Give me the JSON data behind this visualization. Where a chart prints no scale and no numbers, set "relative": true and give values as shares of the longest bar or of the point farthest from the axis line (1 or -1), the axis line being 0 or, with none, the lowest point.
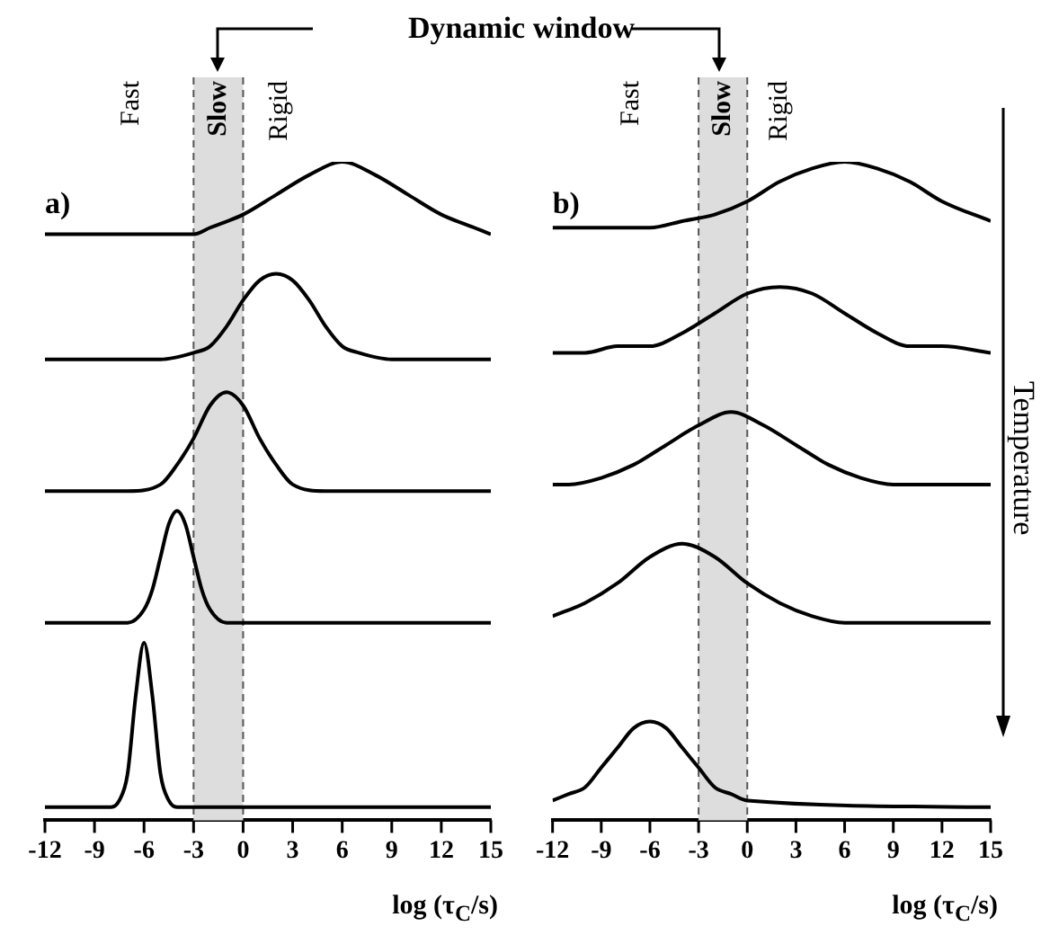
{
  "chart_data": [
    {
      "type": "line",
      "title": "a)",
      "xlabel": "log (τ$_{C}$/s)",
      "relative": true,
      "xlim": [
        -12,
        15
      ],
      "xticks": [
        -12,
        -9,
        -6,
        -3,
        0,
        3,
        6,
        9,
        12,
        15
      ],
      "legend": false,
      "bands": [
        {
          "axis": "x",
          "from": -3,
          "to": 0,
          "label": "Slow",
          "color": "#dddddd"
        }
      ],
      "annotations": [
        "Dynamic window",
        "Fast",
        "Rigid"
      ],
      "series": [
        {
          "color": "#000000",
          "x": [
            -12,
            -8,
            -7.5,
            -7,
            -6.5,
            -6,
            -5.5,
            -5,
            -4.5,
            -4,
            15
          ],
          "values": [
            0.02,
            0.02,
            0.03,
            0.07,
            0.19,
            0.27,
            0.19,
            0.07,
            0.03,
            0.02,
            0.02
          ]
        },
        {
          "color": "#000000",
          "x": [
            -12,
            -7,
            -6,
            -5.5,
            -5,
            -4.5,
            -4,
            -3.5,
            -3,
            -2.5,
            -2,
            -1,
            15
          ],
          "values": [
            0.3,
            0.3,
            0.32,
            0.35,
            0.4,
            0.45,
            0.47,
            0.45,
            0.4,
            0.35,
            0.32,
            0.3,
            0.3
          ]
        },
        {
          "color": "#000000",
          "x": [
            -12,
            -7,
            -5,
            -4,
            -3,
            -2,
            -1,
            0,
            1,
            2,
            3,
            5,
            15
          ],
          "values": [
            0.5,
            0.5,
            0.51,
            0.54,
            0.58,
            0.63,
            0.65,
            0.63,
            0.58,
            0.54,
            0.51,
            0.5,
            0.5
          ]
        },
        {
          "color": "#000000",
          "x": [
            -12,
            -5,
            -3,
            -2,
            -1,
            0,
            1,
            2,
            3,
            4,
            5,
            6,
            7,
            9,
            15
          ],
          "values": [
            0.7,
            0.7,
            0.71,
            0.72,
            0.75,
            0.79,
            0.82,
            0.83,
            0.82,
            0.79,
            0.75,
            0.72,
            0.71,
            0.7,
            0.7
          ]
        },
        {
          "color": "#000000",
          "x": [
            -12,
            -3,
            -2,
            0,
            2,
            4,
            6,
            8,
            10,
            12,
            14,
            15
          ],
          "values": [
            0.89,
            0.89,
            0.9,
            0.92,
            0.95,
            0.98,
            1,
            0.98,
            0.95,
            0.92,
            0.9,
            0.89
          ]
        }
      ]
    },
    {
      "type": "line",
      "title": "b)",
      "xlabel": "log (τ$_{C}$/s)",
      "relative": true,
      "xlim": [
        -12,
        15
      ],
      "xticks": [
        -12,
        -9,
        -6,
        -3,
        0,
        3,
        6,
        9,
        12,
        15
      ],
      "legend": false,
      "bands": [
        {
          "axis": "x",
          "from": -3,
          "to": 0,
          "label": "Slow",
          "color": "#dddddd"
        }
      ],
      "annotations": [
        "Temperature",
        "Fast",
        "Rigid"
      ],
      "series": [
        {
          "color": "#000000",
          "x": [
            -12,
            -11,
            -10,
            -9,
            -8,
            -7,
            -6,
            -5,
            -4,
            -3,
            -2,
            -1,
            0,
            15
          ],
          "values": [
            0.03,
            0.04,
            0.05,
            0.08,
            0.11,
            0.14,
            0.15,
            0.14,
            0.11,
            0.08,
            0.05,
            0.04,
            0.03,
            0.02
          ]
        },
        {
          "color": "#000000",
          "x": [
            -12,
            -10,
            -8,
            -6,
            -4,
            -2,
            0,
            2,
            4,
            6,
            15
          ],
          "values": [
            0.31,
            0.33,
            0.36,
            0.4,
            0.42,
            0.4,
            0.36,
            0.33,
            0.31,
            0.3,
            0.3
          ]
        },
        {
          "color": "#000000",
          "x": [
            -12,
            -11,
            -9,
            -7,
            -5,
            -3,
            -1,
            1,
            3,
            5,
            7,
            9,
            15
          ],
          "values": [
            0.51,
            0.51,
            0.52,
            0.54,
            0.57,
            0.6,
            0.62,
            0.6,
            0.57,
            0.54,
            0.52,
            0.51,
            0.51
          ]
        },
        {
          "color": "#000000",
          "x": [
            -12,
            -10,
            -8,
            -6,
            -4,
            -2,
            0,
            2,
            4,
            6,
            8,
            10,
            12,
            15
          ],
          "values": [
            0.71,
            0.71,
            0.72,
            0.72,
            0.74,
            0.77,
            0.8,
            0.81,
            0.8,
            0.77,
            0.74,
            0.72,
            0.72,
            0.71
          ]
        },
        {
          "color": "#000000",
          "x": [
            -12,
            -6,
            -4,
            -2,
            0,
            2,
            4,
            6,
            8,
            10,
            12,
            15
          ],
          "values": [
            0.9,
            0.9,
            0.91,
            0.92,
            0.94,
            0.97,
            0.99,
            1,
            0.99,
            0.97,
            0.94,
            0.91
          ]
        }
      ]
    }
  ]
}
